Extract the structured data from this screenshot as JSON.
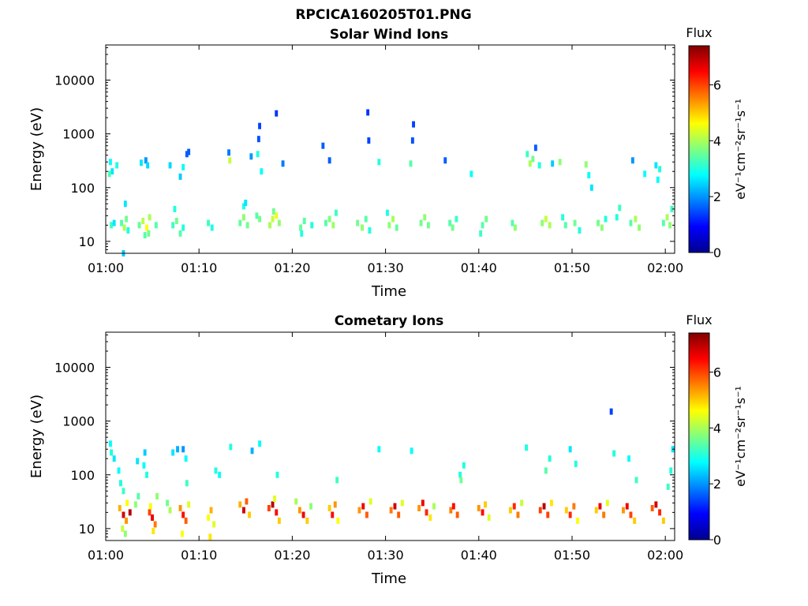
{
  "figure_title": "RPCICA160205T01.PNG",
  "colormap": [
    "#00008f",
    "#0000ff",
    "#0080ff",
    "#00ffff",
    "#80ff80",
    "#ffff00",
    "#ff8000",
    "#ff0000",
    "#800000"
  ],
  "chart_data": [
    {
      "type": "heatmap",
      "title": "Solar Wind Ions",
      "xlabel": "Time",
      "ylabel": "Energy (eV)",
      "x_ticks": [
        "01:00",
        "01:10",
        "01:20",
        "01:30",
        "01:40",
        "01:50",
        "02:00"
      ],
      "x_range_min": [
        0,
        61
      ],
      "y_scale": "log",
      "y_ticks": [
        10,
        100,
        1000,
        10000
      ],
      "y_range": [
        6,
        45000
      ],
      "colorbar": {
        "label_top": "Flux",
        "label": "eV⁻¹cm⁻²sr⁻¹s⁻¹",
        "ticks": [
          0,
          2,
          4,
          6
        ],
        "range": [
          0,
          7.4
        ]
      },
      "cells": [
        [
          0.6,
          20,
          3.2
        ],
        [
          0.9,
          22,
          2.6
        ],
        [
          1.2,
          260,
          3.0
        ],
        [
          0.5,
          300,
          2.8
        ],
        [
          0.7,
          200,
          2.6
        ],
        [
          0.4,
          180,
          3.3
        ],
        [
          1.7,
          22,
          3.4
        ],
        [
          2.0,
          18,
          4.0
        ],
        [
          2.2,
          26,
          3.6
        ],
        [
          2.4,
          16,
          3.0
        ],
        [
          2.1,
          50,
          2.6
        ],
        [
          1.9,
          6,
          2.4
        ],
        [
          3.6,
          20,
          3.5
        ],
        [
          4.0,
          24,
          4.1
        ],
        [
          4.4,
          18,
          4.6
        ],
        [
          4.7,
          28,
          4.0
        ],
        [
          4.2,
          13,
          3.4
        ],
        [
          4.6,
          14,
          3.6
        ],
        [
          5.4,
          20,
          3.4
        ],
        [
          3.8,
          290,
          2.6
        ],
        [
          4.3,
          320,
          2.0
        ],
        [
          4.5,
          260,
          2.5
        ],
        [
          7.2,
          20,
          3.2
        ],
        [
          7.6,
          24,
          3.6
        ],
        [
          8.0,
          14,
          3.4
        ],
        [
          8.3,
          18,
          3.0
        ],
        [
          7.4,
          40,
          3.0
        ],
        [
          6.9,
          260,
          2.5
        ],
        [
          8.7,
          420,
          1.6
        ],
        [
          8.9,
          460,
          1.6
        ],
        [
          8.3,
          240,
          2.8
        ],
        [
          8.0,
          160,
          2.4
        ],
        [
          11.0,
          22,
          3.2
        ],
        [
          11.4,
          18,
          3.0
        ],
        [
          14.4,
          22,
          3.5
        ],
        [
          14.8,
          28,
          3.8
        ],
        [
          15.2,
          20,
          3.6
        ],
        [
          14.8,
          45,
          3.0
        ],
        [
          15.0,
          52,
          2.6
        ],
        [
          13.2,
          450,
          1.8
        ],
        [
          13.3,
          320,
          4.2
        ],
        [
          16.2,
          30,
          3.4
        ],
        [
          16.5,
          26,
          3.6
        ],
        [
          16.4,
          800,
          1.5
        ],
        [
          16.5,
          1400,
          1.4
        ],
        [
          16.7,
          200,
          2.8
        ],
        [
          16.3,
          420,
          3.0
        ],
        [
          15.6,
          380,
          2.0
        ],
        [
          17.6,
          20,
          4.0
        ],
        [
          17.9,
          26,
          4.2
        ],
        [
          18.3,
          30,
          4.5
        ],
        [
          18.6,
          22,
          3.8
        ],
        [
          18.0,
          36,
          3.6
        ],
        [
          18.3,
          2400,
          1.3
        ],
        [
          19.0,
          280,
          1.8
        ],
        [
          20.9,
          18,
          3.5
        ],
        [
          21.3,
          24,
          3.4
        ],
        [
          22.1,
          20,
          3.0
        ],
        [
          21.0,
          14,
          3.0
        ],
        [
          23.6,
          22,
          3.4
        ],
        [
          24.0,
          26,
          3.7
        ],
        [
          24.4,
          20,
          3.9
        ],
        [
          24.7,
          34,
          3.2
        ],
        [
          24.0,
          320,
          1.6
        ],
        [
          23.3,
          600,
          1.6
        ],
        [
          27.0,
          22,
          3.6
        ],
        [
          27.5,
          18,
          3.8
        ],
        [
          27.9,
          26,
          3.4
        ],
        [
          28.3,
          16,
          3.0
        ],
        [
          28.1,
          2500,
          1.3
        ],
        [
          28.2,
          750,
          1.4
        ],
        [
          29.3,
          300,
          3.0
        ],
        [
          30.4,
          20,
          3.8
        ],
        [
          30.8,
          26,
          4.0
        ],
        [
          31.2,
          18,
          3.5
        ],
        [
          30.2,
          34,
          3.0
        ],
        [
          33.8,
          22,
          3.6
        ],
        [
          34.2,
          28,
          3.8
        ],
        [
          34.6,
          20,
          3.6
        ],
        [
          33.0,
          1500,
          1.4
        ],
        [
          32.9,
          750,
          1.5
        ],
        [
          32.7,
          280,
          3.4
        ],
        [
          36.9,
          22,
          3.4
        ],
        [
          37.2,
          18,
          3.6
        ],
        [
          37.6,
          26,
          3.2
        ],
        [
          36.4,
          320,
          1.6
        ],
        [
          39.2,
          180,
          2.8
        ],
        [
          40.4,
          20,
          3.4
        ],
        [
          40.8,
          26,
          3.6
        ],
        [
          40.2,
          14,
          3.2
        ],
        [
          43.6,
          22,
          3.4
        ],
        [
          43.9,
          18,
          3.8
        ],
        [
          45.2,
          420,
          3.2
        ],
        [
          45.5,
          280,
          4.0
        ],
        [
          45.8,
          340,
          3.6
        ],
        [
          46.1,
          550,
          1.6
        ],
        [
          46.5,
          260,
          3.0
        ],
        [
          46.8,
          22,
          3.8
        ],
        [
          47.2,
          26,
          4.2
        ],
        [
          47.6,
          20,
          4.0
        ],
        [
          47.9,
          280,
          2.4
        ],
        [
          48.7,
          300,
          3.8
        ],
        [
          49.0,
          28,
          3.0
        ],
        [
          49.3,
          20,
          3.4
        ],
        [
          50.3,
          22,
          3.6
        ],
        [
          50.8,
          16,
          3.0
        ],
        [
          51.5,
          270,
          3.8
        ],
        [
          51.8,
          170,
          2.8
        ],
        [
          52.1,
          100,
          2.6
        ],
        [
          52.8,
          22,
          3.6
        ],
        [
          53.2,
          18,
          3.8
        ],
        [
          53.6,
          26,
          3.0
        ],
        [
          54.8,
          28,
          3.0
        ],
        [
          55.1,
          42,
          3.2
        ],
        [
          56.3,
          22,
          3.4
        ],
        [
          56.8,
          26,
          4.0
        ],
        [
          57.2,
          18,
          3.8
        ],
        [
          56.5,
          320,
          2.0
        ],
        [
          57.8,
          180,
          2.8
        ],
        [
          59.0,
          260,
          2.6
        ],
        [
          59.2,
          140,
          2.8
        ],
        [
          59.4,
          220,
          3.0
        ],
        [
          59.8,
          22,
          3.4
        ],
        [
          60.2,
          28,
          4.0
        ],
        [
          60.5,
          20,
          3.8
        ],
        [
          60.7,
          40,
          3.2
        ]
      ]
    },
    {
      "type": "heatmap",
      "title": "Cometary Ions",
      "xlabel": "Time",
      "ylabel": "Energy (eV)",
      "x_ticks": [
        "01:00",
        "01:10",
        "01:20",
        "01:30",
        "01:40",
        "01:50",
        "02:00"
      ],
      "x_range_min": [
        0,
        61
      ],
      "y_scale": "log",
      "y_ticks": [
        10,
        100,
        1000,
        10000
      ],
      "y_range": [
        6,
        45000
      ],
      "colorbar": {
        "label_top": "Flux",
        "label": "eV⁻¹cm⁻²sr⁻¹s⁻¹",
        "ticks": [
          0,
          2,
          4,
          6
        ],
        "range": [
          0,
          7.4
        ]
      },
      "cells": [
        [
          0.6,
          260,
          3.0
        ],
        [
          0.9,
          200,
          2.6
        ],
        [
          0.5,
          380,
          2.8
        ],
        [
          1.6,
          70,
          3.0
        ],
        [
          1.9,
          50,
          3.2
        ],
        [
          1.4,
          120,
          2.8
        ],
        [
          1.5,
          24,
          5.2
        ],
        [
          1.9,
          18,
          6.8
        ],
        [
          2.2,
          14,
          5.4
        ],
        [
          2.6,
          20,
          7.0
        ],
        [
          2.3,
          30,
          4.6
        ],
        [
          1.8,
          10,
          4.2
        ],
        [
          2.1,
          8,
          3.8
        ],
        [
          3.2,
          28,
          3.8
        ],
        [
          3.5,
          40,
          3.4
        ],
        [
          3.4,
          180,
          2.6
        ],
        [
          4.1,
          150,
          2.8
        ],
        [
          4.4,
          100,
          3.0
        ],
        [
          4.2,
          260,
          2.4
        ],
        [
          4.7,
          20,
          6.0
        ],
        [
          5.0,
          16,
          6.6
        ],
        [
          5.3,
          12,
          5.6
        ],
        [
          4.8,
          26,
          4.6
        ],
        [
          5.1,
          9,
          4.8
        ],
        [
          5.5,
          40,
          3.8
        ],
        [
          6.6,
          30,
          3.6
        ],
        [
          6.9,
          22,
          4.0
        ],
        [
          7.2,
          260,
          2.6
        ],
        [
          7.7,
          300,
          2.2
        ],
        [
          8.3,
          300,
          2.0
        ],
        [
          8.6,
          200,
          2.8
        ],
        [
          8.0,
          24,
          5.4
        ],
        [
          8.3,
          18,
          6.4
        ],
        [
          8.6,
          14,
          5.8
        ],
        [
          8.9,
          28,
          4.4
        ],
        [
          8.2,
          8,
          4.6
        ],
        [
          8.7,
          70,
          3.2
        ],
        [
          11.0,
          16,
          4.6
        ],
        [
          11.3,
          22,
          5.2
        ],
        [
          11.6,
          12,
          4.4
        ],
        [
          11.2,
          7,
          4.8
        ],
        [
          11.8,
          120,
          3.0
        ],
        [
          12.2,
          100,
          2.8
        ],
        [
          14.4,
          28,
          5.2
        ],
        [
          14.8,
          22,
          6.8
        ],
        [
          15.1,
          32,
          5.8
        ],
        [
          15.4,
          18,
          5.0
        ],
        [
          13.4,
          330,
          3.0
        ],
        [
          15.7,
          280,
          2.2
        ],
        [
          16.5,
          380,
          2.8
        ],
        [
          17.5,
          24,
          6.0
        ],
        [
          17.9,
          28,
          7.0
        ],
        [
          18.3,
          20,
          6.4
        ],
        [
          18.6,
          14,
          5.0
        ],
        [
          18.1,
          36,
          4.4
        ],
        [
          18.4,
          100,
          3.0
        ],
        [
          20.8,
          22,
          5.4
        ],
        [
          21.2,
          18,
          6.6
        ],
        [
          21.6,
          14,
          5.0
        ],
        [
          20.4,
          32,
          4.0
        ],
        [
          22.0,
          26,
          3.8
        ],
        [
          24.0,
          24,
          5.0
        ],
        [
          24.3,
          18,
          6.4
        ],
        [
          24.6,
          28,
          5.4
        ],
        [
          24.9,
          14,
          4.6
        ],
        [
          24.8,
          80,
          3.2
        ],
        [
          27.2,
          22,
          5.4
        ],
        [
          27.6,
          26,
          6.6
        ],
        [
          28.0,
          18,
          5.8
        ],
        [
          28.4,
          32,
          4.4
        ],
        [
          29.3,
          300,
          2.8
        ],
        [
          30.6,
          22,
          5.6
        ],
        [
          31.0,
          26,
          6.8
        ],
        [
          31.4,
          18,
          5.8
        ],
        [
          31.8,
          30,
          4.4
        ],
        [
          32.8,
          280,
          2.8
        ],
        [
          33.6,
          24,
          5.4
        ],
        [
          34.0,
          30,
          6.6
        ],
        [
          34.4,
          20,
          6.2
        ],
        [
          34.8,
          16,
          4.8
        ],
        [
          35.2,
          26,
          4.0
        ],
        [
          37.0,
          22,
          5.6
        ],
        [
          37.3,
          26,
          6.4
        ],
        [
          37.7,
          18,
          5.8
        ],
        [
          38.0,
          100,
          3.0
        ],
        [
          38.4,
          150,
          3.0
        ],
        [
          38.1,
          80,
          3.6
        ],
        [
          40.0,
          24,
          5.4
        ],
        [
          40.4,
          20,
          6.4
        ],
        [
          40.7,
          28,
          5.0
        ],
        [
          41.1,
          16,
          4.4
        ],
        [
          43.4,
          22,
          5.0
        ],
        [
          43.8,
          26,
          6.2
        ],
        [
          44.2,
          18,
          5.6
        ],
        [
          44.6,
          30,
          4.2
        ],
        [
          45.1,
          320,
          3.0
        ],
        [
          46.6,
          22,
          6.0
        ],
        [
          47.0,
          26,
          7.0
        ],
        [
          47.4,
          18,
          6.0
        ],
        [
          47.8,
          30,
          4.8
        ],
        [
          47.2,
          120,
          3.4
        ],
        [
          47.6,
          200,
          3.0
        ],
        [
          49.4,
          22,
          5.0
        ],
        [
          49.8,
          18,
          6.2
        ],
        [
          50.2,
          26,
          5.6
        ],
        [
          50.6,
          14,
          4.6
        ],
        [
          49.8,
          300,
          2.6
        ],
        [
          50.4,
          160,
          3.0
        ],
        [
          52.6,
          22,
          5.0
        ],
        [
          53.0,
          26,
          6.6
        ],
        [
          53.4,
          18,
          5.6
        ],
        [
          53.8,
          30,
          4.4
        ],
        [
          54.2,
          1500,
          1.4
        ],
        [
          54.5,
          250,
          3.0
        ],
        [
          55.5,
          22,
          5.4
        ],
        [
          55.9,
          26,
          6.6
        ],
        [
          56.3,
          18,
          6.0
        ],
        [
          56.7,
          14,
          5.0
        ],
        [
          56.1,
          200,
          2.8
        ],
        [
          56.9,
          80,
          3.2
        ],
        [
          58.6,
          24,
          5.8
        ],
        [
          59.0,
          28,
          6.8
        ],
        [
          59.4,
          20,
          6.2
        ],
        [
          59.8,
          14,
          5.0
        ],
        [
          60.3,
          60,
          3.2
        ],
        [
          60.6,
          120,
          3.0
        ],
        [
          60.8,
          300,
          2.6
        ]
      ]
    }
  ]
}
